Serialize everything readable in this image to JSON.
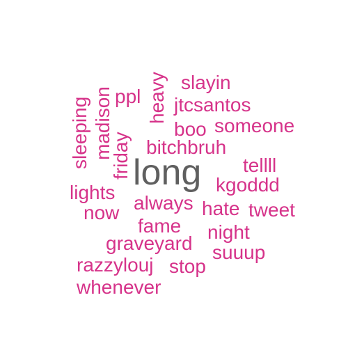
{
  "colors": {
    "main": "#5f5f5f",
    "accent": "#d6338a"
  },
  "words": {
    "long": "long",
    "slayin": "slayin",
    "jtcsantos": "jtcsantos",
    "ppl": "ppl",
    "heavy": "heavy",
    "madison": "madison",
    "sleeping": "sleeping",
    "friday": "friday",
    "boo": "boo",
    "someone": "someone",
    "bitchbruh": "bitchbruh",
    "tellll": "tellll",
    "kgoddd": "kgoddd",
    "lights": "lights",
    "now": "now",
    "always": "always",
    "hate": "hate",
    "tweet": "tweet",
    "fame": "fame",
    "night": "night",
    "graveyard": "graveyard",
    "suuup": "suuup",
    "razzylouj": "razzylouj",
    "stop": "stop",
    "whenever": "whenever"
  }
}
